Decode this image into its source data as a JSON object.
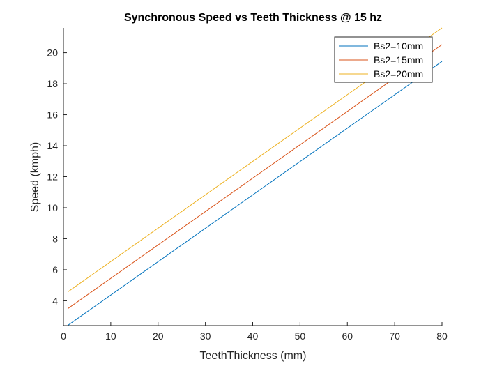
{
  "chart_data": {
    "type": "line",
    "title": "Synchronous Speed vs Teeth Thickness @ 15 hz",
    "xlabel": "TeethThickness (mm)",
    "ylabel": "Speed (kmph)",
    "xlim": [
      0,
      80
    ],
    "ylim": [
      2.4,
      21.6
    ],
    "xticks": [
      0,
      10,
      20,
      30,
      40,
      50,
      60,
      70,
      80
    ],
    "yticks": [
      4,
      6,
      8,
      10,
      12,
      14,
      16,
      18,
      20
    ],
    "grid": false,
    "legend_position": "top-right",
    "series": [
      {
        "name": "Bs2=10mm",
        "color": "#0072BD",
        "x": [
          1,
          80
        ],
        "y": [
          2.43,
          19.44
        ]
      },
      {
        "name": "Bs2=15mm",
        "color": "#D95319",
        "x": [
          1,
          80
        ],
        "y": [
          3.51,
          20.52
        ]
      },
      {
        "name": "Bs2=20mm",
        "color": "#EDB120",
        "x": [
          1,
          80
        ],
        "y": [
          4.59,
          21.6
        ]
      }
    ]
  }
}
